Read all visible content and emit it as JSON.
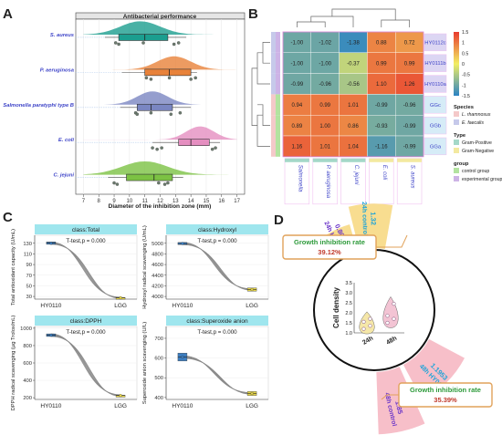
{
  "panels": [
    "A",
    "B",
    "C",
    "D"
  ],
  "chart_data": [
    {
      "id": "A",
      "type": "box-violin",
      "title": "Antibacterial performance",
      "xlabel": "Diameter of the inhibition zone (mm)",
      "xlim": [
        6.5,
        17.5
      ],
      "xticks": [
        7,
        8,
        9,
        10,
        11,
        12,
        13,
        14,
        15,
        16,
        17
      ],
      "categories": [
        "S. aureus",
        "P. aeruginosa",
        "Salmonella paratyphi type B",
        "E. coli",
        "C. jejuni"
      ],
      "colors": [
        "#1b9e8f",
        "#e8823a",
        "#7a86c2",
        "#e58ec0",
        "#7cc243"
      ],
      "series": [
        {
          "name": "S. aureus",
          "q1": 9.3,
          "median": 11.0,
          "q3": 12.5,
          "min": 8.4,
          "max": 13.7,
          "points": [
            9.1,
            9.3,
            10.9,
            12.9,
            13.2
          ],
          "density_peak": 10.7,
          "density_sd": 1.3
        },
        {
          "name": "P. aeruginosa",
          "q1": 11.0,
          "median": 12.6,
          "q3": 14.0,
          "min": 9.5,
          "max": 14.4,
          "points": [
            11.1,
            11.4,
            12.6,
            14.0,
            14.3
          ],
          "density_peak": 12.9,
          "density_sd": 1.1
        },
        {
          "name": "Salmonella paratyphi type B",
          "q1": 10.5,
          "median": 11.4,
          "q3": 12.8,
          "min": 9.4,
          "max": 14.0,
          "points": [
            10.4,
            10.5,
            11.4,
            12.7,
            13.3
          ],
          "density_peak": 11.5,
          "density_sd": 1.0
        },
        {
          "name": "E. coli",
          "q1": 13.2,
          "median": 14.0,
          "q3": 15.2,
          "min": 11.5,
          "max": 15.9,
          "points": [
            11.5,
            11.8,
            12.1,
            15.4,
            15.6
          ],
          "density_peak": 14.6,
          "density_sd": 0.9
        },
        {
          "name": "C. jejuni",
          "q1": 9.8,
          "median": 11.6,
          "q3": 12.8,
          "min": 8.6,
          "max": 13.5,
          "points": [
            9.0,
            9.2,
            11.9,
            12.3,
            12.5
          ],
          "density_peak": 11.0,
          "density_sd": 1.5
        }
      ]
    },
    {
      "id": "B",
      "type": "heatmap",
      "columns": [
        "Salmonella",
        "P. aeruginosa",
        "C. jejuni",
        "E. coli",
        "S. aureus"
      ],
      "rows": [
        "HY0112c",
        "HY0111b",
        "HY0110a",
        "GGc",
        "GGb",
        "GGa"
      ],
      "values": [
        [
          -1.0,
          -1.02,
          -1.38,
          0.88,
          0.72
        ],
        [
          -1.0,
          -1.0,
          -0.37,
          0.99,
          0.99
        ],
        [
          -0.99,
          -0.96,
          -0.56,
          1.1,
          1.26
        ],
        [
          0.94,
          0.99,
          1.01,
          -0.99,
          -0.96
        ],
        [
          0.89,
          1.0,
          0.86,
          -0.93,
          -0.99
        ],
        [
          1.16,
          1.01,
          1.04,
          -1.16,
          -0.99
        ]
      ],
      "scale": {
        "min": -1.5,
        "max": 1.5,
        "ticks": [
          1.5,
          1,
          0.5,
          0,
          -0.5,
          -1,
          -1.5
        ],
        "low": "#2b83c4",
        "mid": "#f2ee63",
        "high": "#e83a2e"
      },
      "legend": {
        "species_title": "Species",
        "species": [
          {
            "label": "L. rhamnosus",
            "color": "#f4c9c9"
          },
          {
            "label": "E. faecalis",
            "color": "#c6c9ea"
          }
        ],
        "type_title": "Type",
        "types": [
          {
            "label": "Gram-Positive",
            "color": "#a4d8c8"
          },
          {
            "label": "Gram-Negative",
            "color": "#f3e9a0"
          }
        ],
        "group_title": "group",
        "groups": [
          {
            "label": "control group",
            "color": "#b3e3a0"
          },
          {
            "label": "experimental group",
            "color": "#cdb3e6"
          }
        ]
      }
    },
    {
      "id": "C",
      "type": "line-box",
      "categories": [
        "HY0110",
        "LGG"
      ],
      "subplots": [
        {
          "label": "class:Total",
          "ylabel": "Total antioxidant capacity (U/mL)",
          "stat": "T-test,p = 0.000",
          "ylim": [
            25,
            145
          ],
          "yticks": [
            30,
            50,
            70,
            90,
            110,
            130
          ],
          "values": [
            130,
            27.5
          ],
          "q": [
            [
              128,
              131,
              132.5
            ],
            [
              27,
              27.5,
              28
            ]
          ],
          "box_colors": [
            "#3b7dc0",
            "#e6d54a"
          ]
        },
        {
          "label": "class:Hydroxyl",
          "ylabel": "Hydroxyl radical scavenging (U/mL)",
          "stat": "T-test,p = 0.000",
          "ylim": [
            3950,
            5150
          ],
          "yticks": [
            4000,
            4200,
            4400,
            4600,
            4800,
            5000
          ],
          "values": [
            4995,
            4130
          ],
          "q": [
            [
              4975,
              4995,
              5015
            ],
            [
              4100,
              4130,
              4160
            ]
          ],
          "box_colors": [
            "#3b7dc0",
            "#e6d54a"
          ]
        },
        {
          "label": "class:DPPH",
          "ylabel": "DPPH radical scavenging (µg Trolox/mL)",
          "stat": "T-test,p = 0.000",
          "ylim": [
            180,
            1020
          ],
          "yticks": [
            200,
            400,
            600,
            800,
            1000
          ],
          "values": [
            920,
            225
          ],
          "q": [
            [
              905,
              920,
              935
            ],
            [
              222,
              225,
              228
            ]
          ],
          "box_colors": [
            "#3b7dc0",
            "#e6d54a"
          ]
        },
        {
          "label": "class:Superoxide anion",
          "ylabel": "Superoxide anion scavenging (U/L)",
          "stat": "T-test,p = 0.000",
          "ylim": [
            390,
            760
          ],
          "yticks": [
            400,
            500,
            600,
            700
          ],
          "values": [
            605,
            420
          ],
          "q": [
            [
              585,
              605,
              625
            ],
            [
              410,
              420,
              430
            ]
          ],
          "box_colors": [
            "#3b7dc0",
            "#e6d54a"
          ]
        }
      ]
    },
    {
      "id": "D",
      "type": "radial-bar-violin",
      "inner_ylabel": "Cell density",
      "inner_categories": [
        "24h",
        "48h"
      ],
      "inner_yticks": [
        1.0,
        1.5,
        2.0,
        2.5,
        3.0,
        3.5
      ],
      "inner_points": [
        [
          1.2,
          1.35,
          1.55,
          1.7
        ],
        [
          1.5,
          1.7,
          1.85,
          2.45
        ]
      ],
      "bars": [
        {
          "label": "24h HY0110",
          "value": 0.8036,
          "color": "#f7d77c",
          "text_color": "#6b35c8"
        },
        {
          "label": "24h control",
          "value": 1.32,
          "color": "#f7d77c",
          "text_color": "#1ea4d8"
        },
        {
          "label": "48h control",
          "value": 1.85,
          "color": "#f6b4bf",
          "text_color": "#6b35c8"
        },
        {
          "label": "48h HY0110",
          "value": 1.1953,
          "color": "#f6b4bf",
          "text_color": "#1ea4d8"
        }
      ],
      "annotations": [
        {
          "title": "Growth inhibition rate",
          "value": "39.12%"
        },
        {
          "title": "Growth inhibition rate",
          "value": "35.39%"
        }
      ]
    }
  ]
}
